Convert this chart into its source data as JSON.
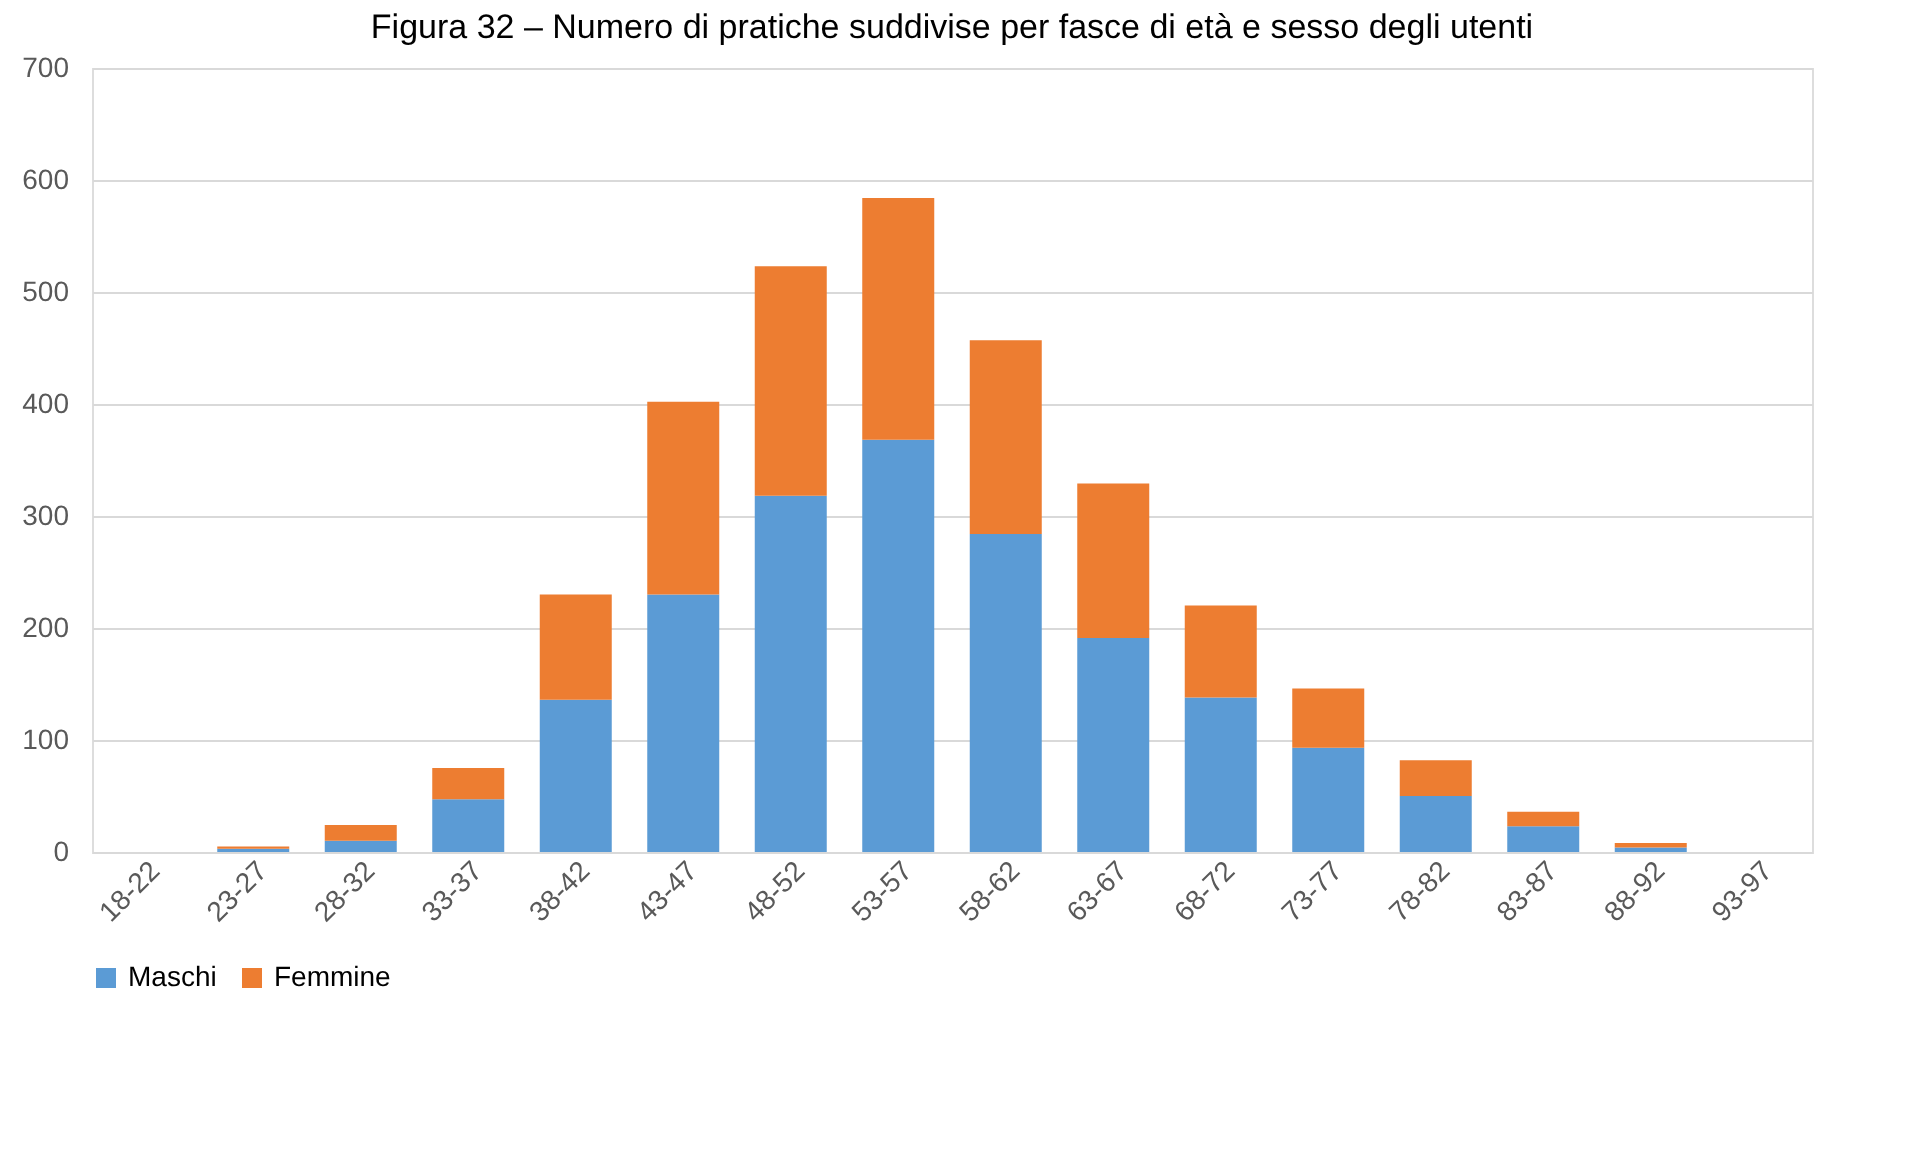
{
  "chart_data": {
    "type": "bar",
    "stacked": true,
    "title": "Figura 32 – Numero di pratiche suddivise per fasce di età e sesso degli utenti",
    "categories": [
      "18-22",
      "23-27",
      "28-32",
      "33-37",
      "38-42",
      "43-47",
      "48-52",
      "53-57",
      "58-62",
      "63-67",
      "68-72",
      "73-77",
      "78-82",
      "83-87",
      "88-92",
      "93-97"
    ],
    "series": [
      {
        "name": "Maschi",
        "color": "#5b9bd5",
        "values": [
          0,
          3,
          10,
          47,
          136,
          230,
          318,
          368,
          284,
          191,
          138,
          93,
          50,
          23,
          4,
          0
        ]
      },
      {
        "name": "Femmine",
        "color": "#ed7d31",
        "values": [
          0,
          2,
          14,
          28,
          94,
          172,
          205,
          216,
          173,
          138,
          82,
          53,
          32,
          13,
          4,
          0
        ]
      }
    ],
    "ylim": [
      0,
      700
    ],
    "yticks": [
      0,
      100,
      200,
      300,
      400,
      500,
      600,
      700
    ],
    "grid": "y",
    "legend": "bottom"
  }
}
